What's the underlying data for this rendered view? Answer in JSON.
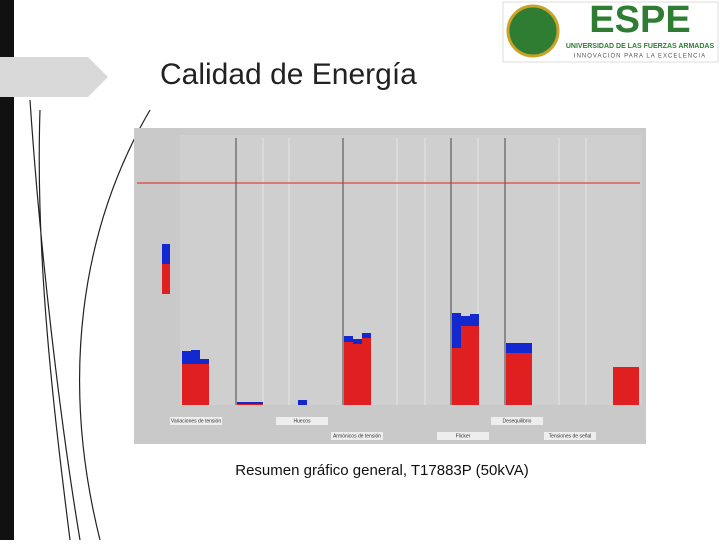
{
  "slide": {
    "title": "Calidad de Energía",
    "caption": "Resumen gráfico general, T17883P (50kVA)"
  },
  "logo": {
    "name": "ESPE",
    "university": "UNIVERSIDAD DE LAS FUERZAS ARMADAS",
    "motto": "INNOVACIÓN PARA LA EXCELENCIA"
  },
  "chart": {
    "labels": [
      "Variaciones de tensión",
      "Huecos",
      "Armónicos de tensión",
      "Flicker",
      "Desequilibrio",
      "Tensiones de señal"
    ]
  }
}
